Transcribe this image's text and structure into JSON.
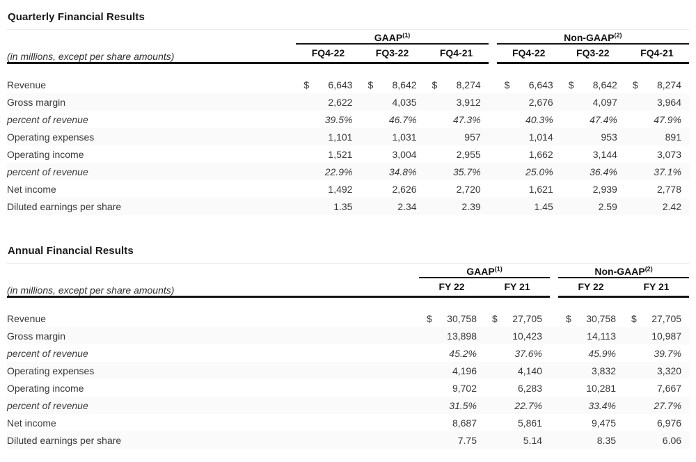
{
  "colors": {
    "background": "#ffffff",
    "body_text": "#383838",
    "header_text": "#111111",
    "rule_black": "#141414",
    "title_rule": "#ebebeb",
    "row_stripe": "#fafafa"
  },
  "currency_symbol": "$",
  "tables": [
    {
      "title": "Quarterly Financial Results",
      "note": "(in millions, except per share amounts)",
      "groups": [
        {
          "label": "GAAP",
          "superscript": "(1)",
          "columns": [
            "FQ4-22",
            "FQ3-22",
            "FQ4-21"
          ]
        },
        {
          "label": "Non-GAAP",
          "superscript": "(2)",
          "columns": [
            "FQ4-22",
            "FQ3-22",
            "FQ4-21"
          ]
        }
      ],
      "rows": [
        {
          "label": "Revenue",
          "italic": false,
          "currency": true,
          "values": [
            "6,643",
            "8,642",
            "8,274",
            "6,643",
            "8,642",
            "8,274"
          ]
        },
        {
          "label": "Gross margin",
          "italic": false,
          "currency": false,
          "values": [
            "2,622",
            "4,035",
            "3,912",
            "2,676",
            "4,097",
            "3,964"
          ]
        },
        {
          "label": "percent of revenue",
          "italic": true,
          "currency": false,
          "values": [
            "39.5%",
            "46.7%",
            "47.3%",
            "40.3%",
            "47.4%",
            "47.9%"
          ]
        },
        {
          "label": "Operating expenses",
          "italic": false,
          "currency": false,
          "values": [
            "1,101",
            "1,031",
            "957",
            "1,014",
            "953",
            "891"
          ]
        },
        {
          "label": "Operating income",
          "italic": false,
          "currency": false,
          "values": [
            "1,521",
            "3,004",
            "2,955",
            "1,662",
            "3,144",
            "3,073"
          ]
        },
        {
          "label": "percent of revenue",
          "italic": true,
          "currency": false,
          "values": [
            "22.9%",
            "34.8%",
            "35.7%",
            "25.0%",
            "36.4%",
            "37.1%"
          ]
        },
        {
          "label": "Net income",
          "italic": false,
          "currency": false,
          "values": [
            "1,492",
            "2,626",
            "2,720",
            "1,621",
            "2,939",
            "2,778"
          ]
        },
        {
          "label": "Diluted earnings per share",
          "italic": false,
          "currency": false,
          "values": [
            "1.35",
            "2.34",
            "2.39",
            "1.45",
            "2.59",
            "2.42"
          ]
        }
      ]
    },
    {
      "title": "Annual Financial Results",
      "note": "(in millions, except per share amounts)",
      "groups": [
        {
          "label": "GAAP",
          "superscript": "(1)",
          "columns": [
            "FY 22",
            "FY 21"
          ]
        },
        {
          "label": "Non-GAAP",
          "superscript": "(2)",
          "columns": [
            "FY 22",
            "FY 21"
          ]
        }
      ],
      "rows": [
        {
          "label": "Revenue",
          "italic": false,
          "currency": true,
          "values": [
            "30,758",
            "27,705",
            "30,758",
            "27,705"
          ]
        },
        {
          "label": "Gross margin",
          "italic": false,
          "currency": false,
          "values": [
            "13,898",
            "10,423",
            "14,113",
            "10,987"
          ]
        },
        {
          "label": "percent of revenue",
          "italic": true,
          "currency": false,
          "values": [
            "45.2%",
            "37.6%",
            "45.9%",
            "39.7%"
          ]
        },
        {
          "label": "Operating expenses",
          "italic": false,
          "currency": false,
          "values": [
            "4,196",
            "4,140",
            "3,832",
            "3,320"
          ]
        },
        {
          "label": "Operating income",
          "italic": false,
          "currency": false,
          "values": [
            "9,702",
            "6,283",
            "10,281",
            "7,667"
          ]
        },
        {
          "label": "percent of revenue",
          "italic": true,
          "currency": false,
          "values": [
            "31.5%",
            "22.7%",
            "33.4%",
            "27.7%"
          ]
        },
        {
          "label": "Net income",
          "italic": false,
          "currency": false,
          "values": [
            "8,687",
            "5,861",
            "9,475",
            "6,976"
          ]
        },
        {
          "label": "Diluted earnings per share",
          "italic": false,
          "currency": false,
          "values": [
            "7.75",
            "5.14",
            "8.35",
            "6.06"
          ]
        }
      ]
    }
  ]
}
